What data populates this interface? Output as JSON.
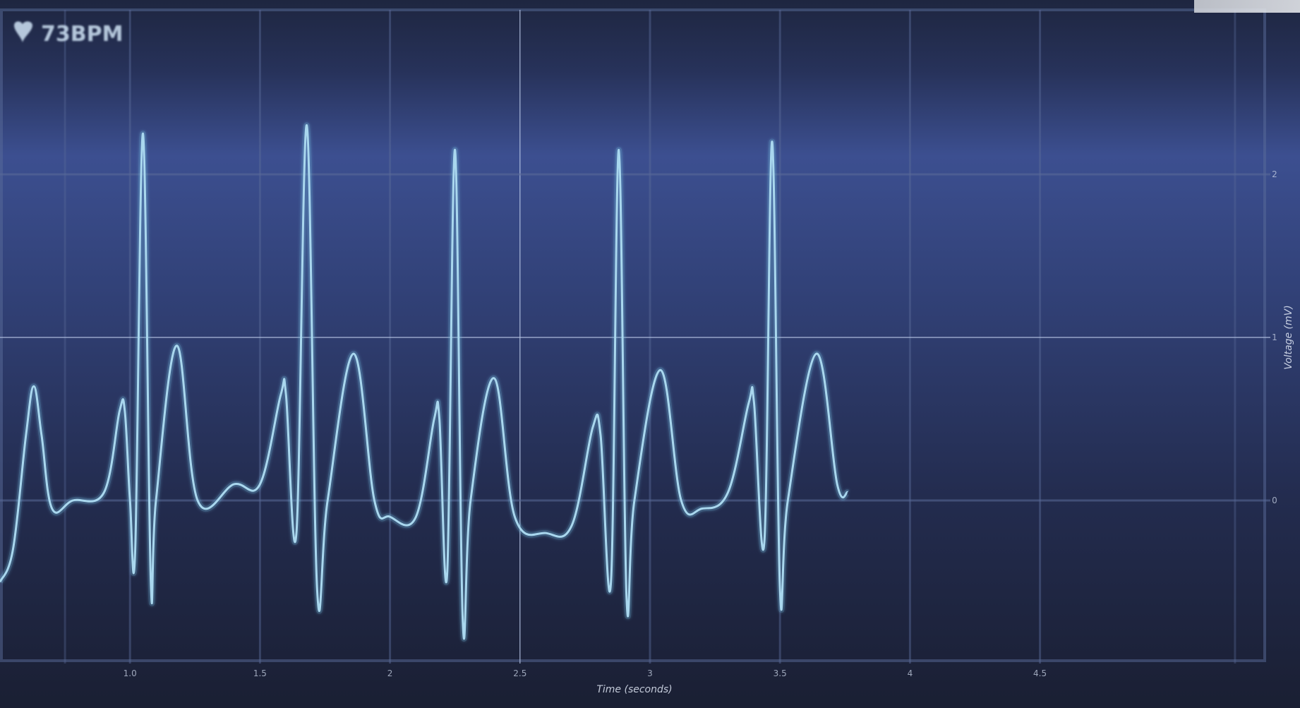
{
  "window": {
    "bpm_label": "73BPM"
  },
  "colors": {
    "background_top": "#1e2640",
    "background_band": "#3c4f90",
    "background_bottom": "#1a1f33",
    "grid_major": "#b8c7e6",
    "grid_faint": "#5a6b99",
    "trace": "#a9d7ee",
    "trace_glow": "#6fb4d8"
  },
  "chart_data": {
    "type": "line",
    "title": "",
    "xlabel": "Time (seconds)",
    "ylabel": "Voltage (mV)",
    "xlim": [
      0.5,
      5.5
    ],
    "ylim": [
      -1,
      3
    ],
    "x_ticks": [
      {
        "value": 1.0,
        "label": "1.0"
      },
      {
        "value": 1.5,
        "label": "1.5"
      },
      {
        "value": 2.0,
        "label": "2"
      },
      {
        "value": 2.5,
        "label": "2.5"
      },
      {
        "value": 3.0,
        "label": "3"
      },
      {
        "value": 3.5,
        "label": "3.5"
      },
      {
        "value": 4.0,
        "label": "4"
      },
      {
        "value": 4.5,
        "label": "4.5"
      }
    ],
    "y_ticks": [
      {
        "value": 0,
        "label": "0"
      },
      {
        "value": 1,
        "label": "1"
      },
      {
        "value": 2,
        "label": "2"
      }
    ],
    "grid": true,
    "series": [
      {
        "values": [
          [
            0.5,
            -0.5
          ],
          [
            0.55,
            -0.3
          ],
          [
            0.6,
            0.4
          ],
          [
            0.63,
            0.7
          ],
          [
            0.66,
            0.4
          ],
          [
            0.7,
            -0.05
          ],
          [
            0.78,
            0.0
          ],
          [
            0.9,
            0.05
          ],
          [
            0.96,
            0.55
          ],
          [
            0.98,
            0.55
          ],
          [
            1.0,
            0.0
          ],
          [
            1.02,
            -0.3
          ],
          [
            1.05,
            2.25
          ],
          [
            1.08,
            -0.5
          ],
          [
            1.1,
            0.0
          ],
          [
            1.18,
            0.95
          ],
          [
            1.26,
            0.0
          ],
          [
            1.4,
            0.1
          ],
          [
            1.5,
            0.1
          ],
          [
            1.58,
            0.65
          ],
          [
            1.6,
            0.65
          ],
          [
            1.64,
            -0.2
          ],
          [
            1.68,
            2.3
          ],
          [
            1.72,
            -0.55
          ],
          [
            1.76,
            0.0
          ],
          [
            1.86,
            0.9
          ],
          [
            1.94,
            0.0
          ],
          [
            2.0,
            -0.1
          ],
          [
            2.1,
            -0.1
          ],
          [
            2.17,
            0.5
          ],
          [
            2.19,
            0.5
          ],
          [
            2.22,
            -0.45
          ],
          [
            2.25,
            2.15
          ],
          [
            2.28,
            -0.75
          ],
          [
            2.31,
            0.0
          ],
          [
            2.4,
            0.75
          ],
          [
            2.48,
            -0.1
          ],
          [
            2.6,
            -0.2
          ],
          [
            2.7,
            -0.15
          ],
          [
            2.78,
            0.45
          ],
          [
            2.81,
            0.4
          ],
          [
            2.85,
            -0.5
          ],
          [
            2.88,
            2.15
          ],
          [
            2.91,
            -0.6
          ],
          [
            2.94,
            0.0
          ],
          [
            3.04,
            0.8
          ],
          [
            3.12,
            0.0
          ],
          [
            3.2,
            -0.05
          ],
          [
            3.3,
            0.05
          ],
          [
            3.38,
            0.6
          ],
          [
            3.4,
            0.6
          ],
          [
            3.44,
            -0.25
          ],
          [
            3.47,
            2.2
          ],
          [
            3.5,
            -0.55
          ],
          [
            3.53,
            0.0
          ],
          [
            3.64,
            0.9
          ],
          [
            3.72,
            0.1
          ],
          [
            3.76,
            0.05
          ]
        ]
      }
    ]
  }
}
